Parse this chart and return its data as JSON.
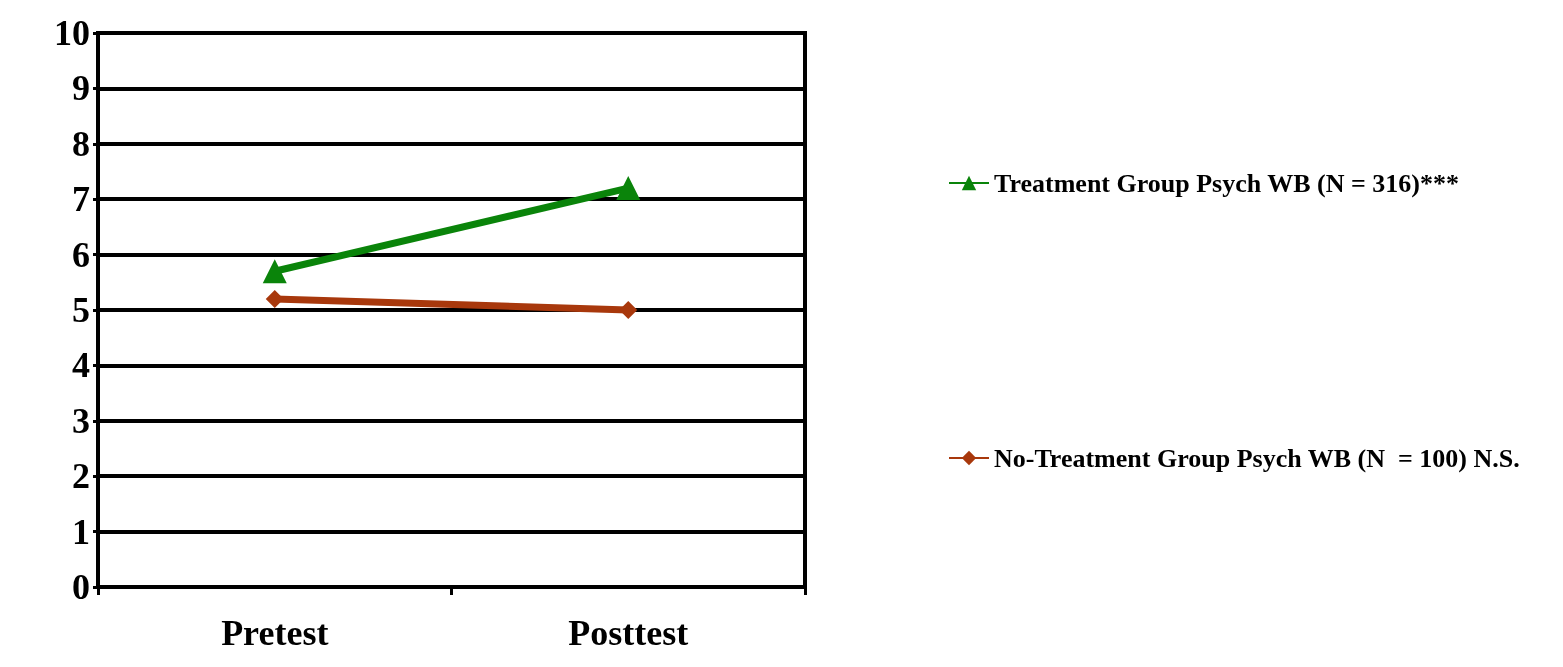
{
  "chart_data": {
    "type": "line",
    "categories": [
      "Pretest",
      "Posttest"
    ],
    "series": [
      {
        "name": "Treatment Group Psych WB (N = 316)***",
        "color": "#0a840a",
        "values": [
          5.7,
          7.2
        ],
        "marker": "triangle"
      },
      {
        "name": "No-Treatment Group Psych WB (N  = 100) N.S.",
        "color": "#a8380c",
        "values": [
          5.2,
          5.0
        ],
        "marker": "diamond"
      }
    ],
    "ylim": [
      0,
      10
    ],
    "yticks": [
      0,
      1,
      2,
      3,
      4,
      5,
      6,
      7,
      8,
      9,
      10
    ],
    "grid": "y",
    "legend": "right",
    "line_style": "solid"
  }
}
